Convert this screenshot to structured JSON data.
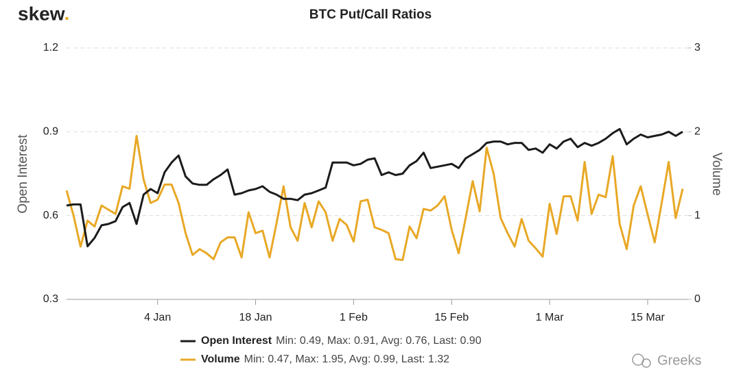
{
  "logo": "skew.",
  "watermark": "Greeks",
  "chart_data": {
    "type": "line",
    "title": "BTC Put/Call Ratios",
    "y_label": "Open Interest",
    "y2_label": "Volume",
    "x": [
      0,
      1,
      2,
      3,
      4,
      5,
      6,
      7,
      8,
      9,
      10,
      11,
      12,
      13,
      14,
      15,
      16,
      17,
      18,
      19,
      20,
      21,
      22,
      23,
      24,
      25,
      26,
      27,
      28,
      29,
      30,
      31,
      32,
      33,
      34,
      35,
      36,
      37,
      38,
      39,
      40,
      41,
      42,
      43,
      44,
      45,
      46,
      47,
      48,
      49,
      50,
      51,
      52,
      53,
      54,
      55,
      56,
      57,
      58,
      59,
      60,
      61,
      62,
      63,
      64,
      65,
      66,
      67,
      68,
      69,
      70,
      71,
      72,
      73,
      74,
      75,
      76,
      77,
      78,
      79,
      80,
      81,
      82,
      83,
      84,
      85,
      86,
      87,
      88
    ],
    "xlim": [
      0,
      88
    ],
    "xticks": [
      {
        "value": 13,
        "label": "4 Jan"
      },
      {
        "value": 27,
        "label": "18 Jan"
      },
      {
        "value": 41,
        "label": "1 Feb"
      },
      {
        "value": 55,
        "label": "15 Feb"
      },
      {
        "value": 69,
        "label": "1 Mar"
      },
      {
        "value": 83,
        "label": "15 Mar"
      }
    ],
    "ylim": [
      0.3,
      1.2
    ],
    "yticks": [
      0.3,
      0.6,
      0.9,
      1.2
    ],
    "y2lim": [
      0,
      3
    ],
    "y2ticks": [
      0,
      1,
      2,
      3
    ],
    "grid": true,
    "series": [
      {
        "name": "Open Interest",
        "stats": "Min: 0.49, Max: 0.91, Avg: 0.76, Last: 0.90",
        "color": "#1b1b1b",
        "values": [
          0.636,
          0.64,
          0.64,
          0.49,
          0.52,
          0.565,
          0.57,
          0.58,
          0.63,
          0.645,
          0.57,
          0.675,
          0.695,
          0.68,
          0.755,
          0.79,
          0.815,
          0.74,
          0.715,
          0.71,
          0.71,
          0.73,
          0.745,
          0.765,
          0.675,
          0.68,
          0.69,
          0.695,
          0.705,
          0.685,
          0.675,
          0.66,
          0.66,
          0.655,
          0.675,
          0.68,
          0.69,
          0.7,
          0.79,
          0.79,
          0.79,
          0.78,
          0.785,
          0.8,
          0.805,
          0.745,
          0.755,
          0.745,
          0.75,
          0.78,
          0.795,
          0.825,
          0.77,
          0.775,
          0.78,
          0.785,
          0.77,
          0.805,
          0.82,
          0.835,
          0.86,
          0.865,
          0.865,
          0.855,
          0.86,
          0.86,
          0.835,
          0.84,
          0.825,
          0.855,
          0.84,
          0.865,
          0.875,
          0.845,
          0.86,
          0.85,
          0.86,
          0.875,
          0.895,
          0.91,
          0.855,
          0.875,
          0.89,
          0.88,
          0.885,
          0.89,
          0.9,
          0.885,
          0.9
        ]
      },
      {
        "name": "Volume",
        "stats": "Min: 0.47, Max: 1.95, Avg: 0.99, Last: 1.32",
        "color": "#e8a825",
        "axis": "y2",
        "values": [
          1.3,
          1.0,
          0.63,
          0.94,
          0.87,
          1.12,
          1.07,
          1.02,
          1.35,
          1.32,
          1.95,
          1.43,
          1.15,
          1.19,
          1.37,
          1.37,
          1.15,
          0.79,
          0.53,
          0.6,
          0.55,
          0.48,
          0.68,
          0.74,
          0.74,
          0.5,
          1.04,
          0.79,
          0.82,
          0.5,
          0.91,
          1.35,
          0.86,
          0.7,
          1.15,
          0.86,
          1.17,
          1.04,
          0.7,
          0.96,
          0.89,
          0.69,
          1.17,
          1.19,
          0.86,
          0.83,
          0.79,
          0.48,
          0.47,
          0.87,
          0.73,
          1.08,
          1.06,
          1.12,
          1.23,
          0.83,
          0.55,
          0.97,
          1.41,
          1.05,
          1.81,
          1.5,
          0.97,
          0.79,
          0.63,
          0.96,
          0.7,
          0.61,
          0.51,
          1.14,
          0.78,
          1.23,
          1.23,
          0.94,
          1.64,
          1.02,
          1.25,
          1.22,
          1.71,
          0.9,
          0.6,
          1.12,
          1.35,
          1.01,
          0.68,
          1.15,
          1.64,
          0.97,
          1.32
        ]
      }
    ]
  }
}
